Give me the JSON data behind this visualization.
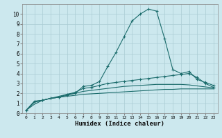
{
  "xlabel": "Humidex (Indice chaleur)",
  "ylabel": "",
  "background_color": "#cce8ee",
  "grid_color": "#aaccd4",
  "line_color": "#1a6b6b",
  "x_values": [
    0,
    1,
    2,
    3,
    4,
    5,
    6,
    7,
    8,
    9,
    10,
    11,
    12,
    13,
    14,
    15,
    16,
    17,
    18,
    19,
    20,
    21,
    22,
    23
  ],
  "series": [
    [
      0.3,
      1.2,
      1.3,
      1.5,
      1.6,
      1.8,
      2.0,
      2.7,
      2.8,
      3.2,
      4.7,
      6.1,
      7.7,
      9.3,
      10.0,
      10.5,
      10.3,
      7.5,
      4.4,
      4.0,
      4.2,
      3.4,
      3.1,
      2.8
    ],
    [
      0.3,
      1.2,
      1.3,
      1.5,
      1.6,
      1.9,
      2.1,
      2.5,
      2.6,
      2.8,
      3.0,
      3.1,
      3.2,
      3.3,
      3.4,
      3.5,
      3.6,
      3.7,
      3.8,
      3.9,
      4.0,
      3.6,
      3.0,
      2.6
    ],
    [
      0.3,
      1.1,
      1.3,
      1.5,
      1.7,
      1.9,
      2.0,
      2.2,
      2.3,
      2.4,
      2.5,
      2.6,
      2.7,
      2.75,
      2.8,
      2.85,
      2.9,
      2.9,
      2.9,
      2.9,
      2.85,
      2.75,
      2.65,
      2.55
    ],
    [
      0.3,
      0.9,
      1.3,
      1.5,
      1.6,
      1.7,
      1.8,
      1.9,
      1.95,
      2.0,
      2.05,
      2.1,
      2.15,
      2.2,
      2.25,
      2.3,
      2.35,
      2.4,
      2.4,
      2.45,
      2.45,
      2.45,
      2.45,
      2.45
    ]
  ],
  "has_markers": [
    true,
    true,
    false,
    false
  ],
  "ylim": [
    0,
    11
  ],
  "xlim": [
    -0.5,
    23.5
  ],
  "yticks": [
    0,
    1,
    2,
    3,
    4,
    5,
    6,
    7,
    8,
    9,
    10
  ],
  "xticks": [
    0,
    1,
    2,
    3,
    4,
    5,
    6,
    7,
    8,
    9,
    10,
    11,
    12,
    13,
    14,
    15,
    16,
    17,
    18,
    19,
    20,
    21,
    22,
    23
  ]
}
